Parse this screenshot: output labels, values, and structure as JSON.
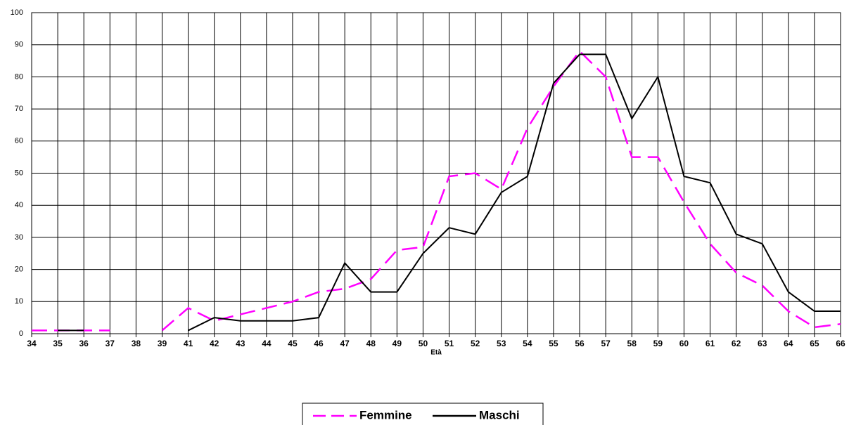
{
  "chart_data": {
    "type": "line",
    "x_label": "Età",
    "categories": [
      "34",
      "35",
      "36",
      "37",
      "38",
      "39",
      "41",
      "42",
      "43",
      "44",
      "45",
      "46",
      "47",
      "48",
      "49",
      "50",
      "51",
      "52",
      "53",
      "54",
      "55",
      "56",
      "57",
      "58",
      "59",
      "60",
      "61",
      "62",
      "63",
      "64",
      "65",
      "66"
    ],
    "series": [
      {
        "name": "Femmine",
        "color": "#ff00ff",
        "dashed": true,
        "values": [
          1,
          1,
          1,
          1,
          null,
          1,
          8,
          4,
          6,
          8,
          10,
          13,
          14,
          17,
          26,
          27,
          49,
          50,
          45,
          64,
          77,
          88,
          80,
          55,
          55,
          41,
          28,
          19,
          15,
          7,
          2,
          3
        ]
      },
      {
        "name": "Maschi",
        "color": "#000000",
        "dashed": false,
        "values": [
          null,
          1,
          1,
          null,
          null,
          null,
          1,
          5,
          4,
          4,
          4,
          5,
          22,
          13,
          13,
          25,
          33,
          31,
          44,
          49,
          78,
          87,
          87,
          67,
          80,
          49,
          47,
          31,
          28,
          13,
          7,
          7
        ]
      }
    ],
    "ylim": [
      0,
      100
    ],
    "yticks": [
      0,
      10,
      20,
      30,
      40,
      50,
      60,
      70,
      80,
      90,
      100
    ],
    "grid": true,
    "legend": "bottom"
  }
}
